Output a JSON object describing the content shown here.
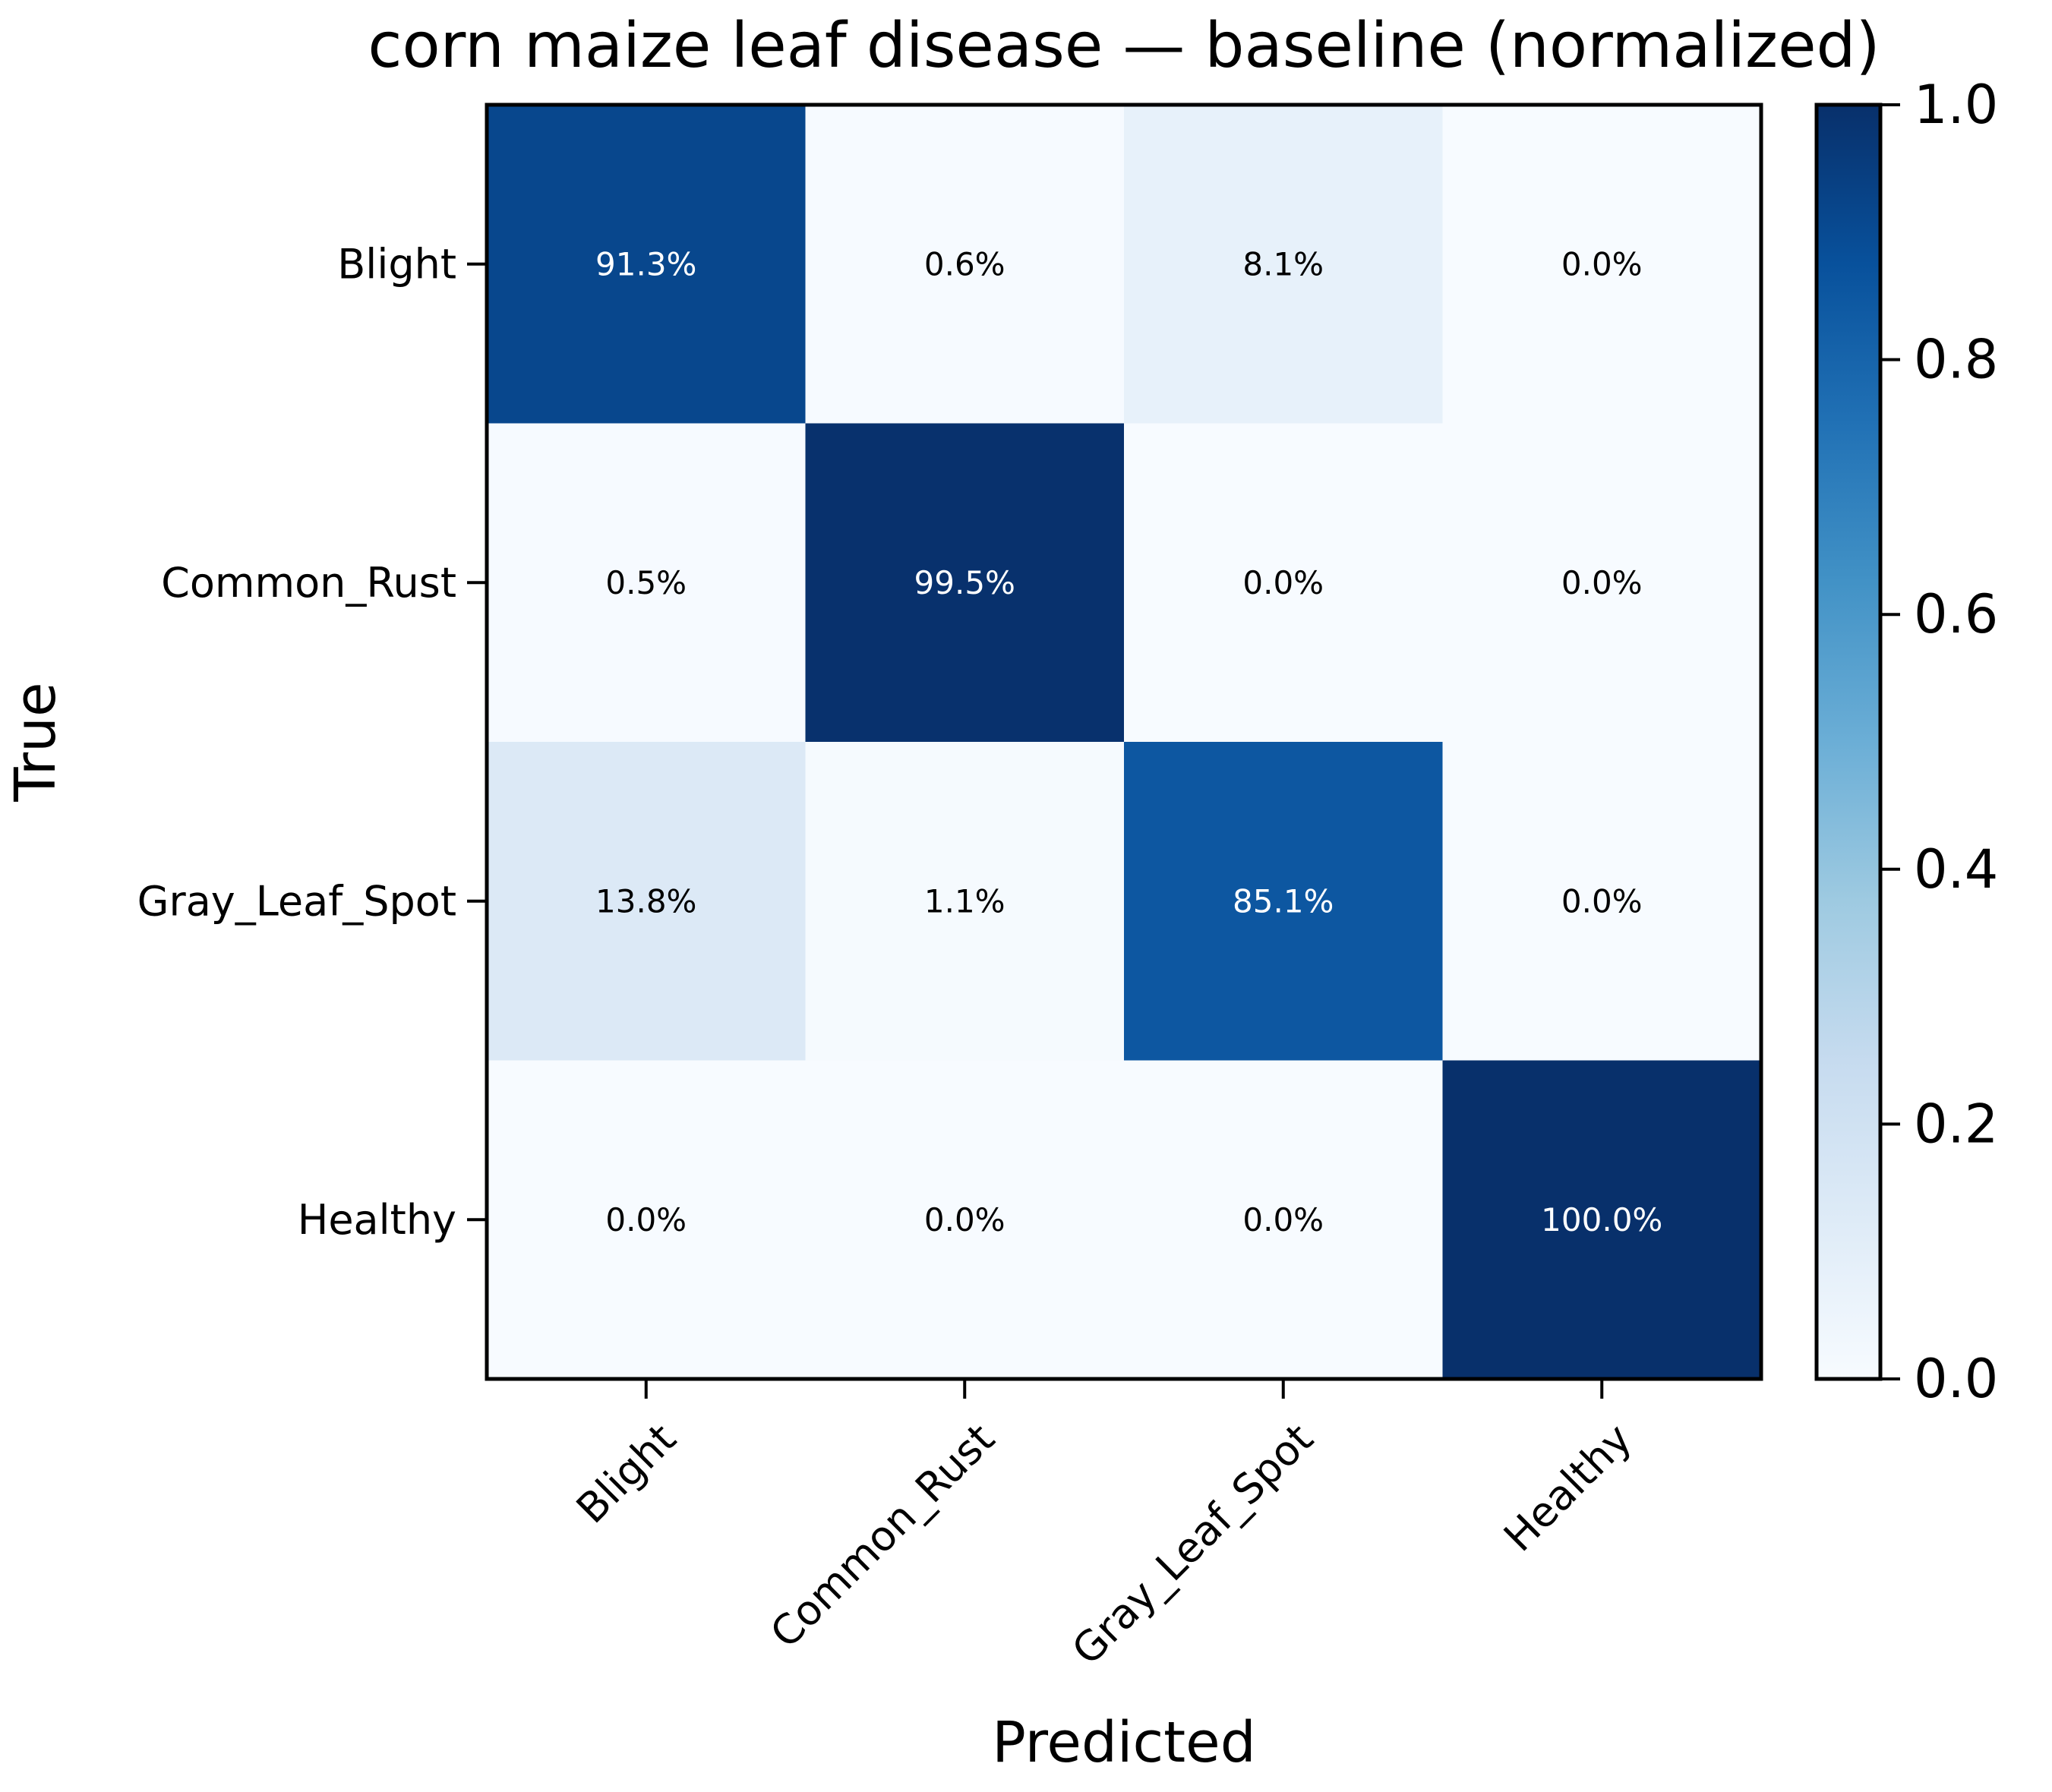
{
  "chart_data": {
    "type": "heatmap",
    "title": "corn maize leaf disease — baseline (normalized)",
    "xlabel": "Predicted",
    "ylabel": "True",
    "x_categories": [
      "Blight",
      "Common_Rust",
      "Gray_Leaf_Spot",
      "Healthy"
    ],
    "y_categories": [
      "Blight",
      "Common_Rust",
      "Gray_Leaf_Spot",
      "Healthy"
    ],
    "values": [
      [
        0.913,
        0.006,
        0.081,
        0.0
      ],
      [
        0.005,
        0.995,
        0.0,
        0.0
      ],
      [
        0.138,
        0.011,
        0.851,
        0.0
      ],
      [
        0.0,
        0.0,
        0.0,
        1.0
      ]
    ],
    "cell_labels": [
      [
        "91.3%",
        "0.6%",
        "8.1%",
        "0.0%"
      ],
      [
        "0.5%",
        "99.5%",
        "0.0%",
        "0.0%"
      ],
      [
        "13.8%",
        "1.1%",
        "85.1%",
        "0.0%"
      ],
      [
        "0.0%",
        "0.0%",
        "0.0%",
        "100.0%"
      ]
    ],
    "colormap": "Blues",
    "colorbar": {
      "range": [
        0.0,
        1.0
      ],
      "ticks": [
        0.0,
        0.2,
        0.4,
        0.6,
        0.8,
        1.0
      ],
      "tick_labels": [
        "0.0",
        "0.2",
        "0.4",
        "0.6",
        "0.8",
        "1.0"
      ],
      "placement": "right"
    },
    "colors": {
      "cmap_stops": [
        "#f7fbff",
        "#deebf7",
        "#c6dbef",
        "#9ecae1",
        "#6baed6",
        "#4292c6",
        "#2171b5",
        "#08519c",
        "#08306b"
      ],
      "text_dark": "#000000",
      "text_light": "#ffffff"
    },
    "grid": false
  }
}
